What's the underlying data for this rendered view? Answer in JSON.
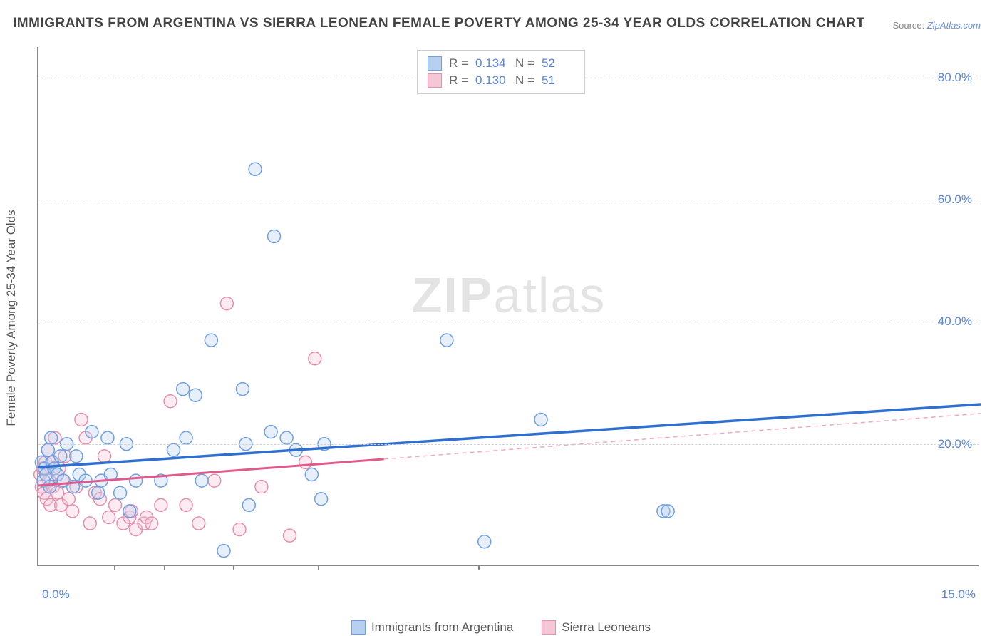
{
  "title": "IMMIGRANTS FROM ARGENTINA VS SIERRA LEONEAN FEMALE POVERTY AMONG 25-34 YEAR OLDS CORRELATION CHART",
  "source_prefix": "Source: ",
  "source_link": "ZipAtlas.com",
  "yaxis_title": "Female Poverty Among 25-34 Year Olds",
  "watermark": {
    "zip": "ZIP",
    "atlas": "atlas"
  },
  "chart": {
    "type": "scatter",
    "xlim": [
      0,
      15
    ],
    "ylim": [
      0,
      85
    ],
    "x_ticks": [
      1.2,
      2.0,
      3.1,
      4.45,
      7.0
    ],
    "x_labels": [
      {
        "value": 0,
        "text": "0.0%",
        "align": "left"
      },
      {
        "value": 15,
        "text": "15.0%",
        "align": "right"
      }
    ],
    "y_labels": [
      {
        "value": 20,
        "text": "20.0%"
      },
      {
        "value": 40,
        "text": "40.0%"
      },
      {
        "value": 60,
        "text": "60.0%"
      },
      {
        "value": 80,
        "text": "80.0%"
      }
    ],
    "y_gridlines": [
      20,
      40,
      60,
      80
    ],
    "background_color": "#ffffff",
    "grid_color": "#d0d0d0",
    "axis_color": "#888888",
    "marker_radius": 9,
    "marker_stroke_width": 1.5,
    "marker_fill_opacity": 0.35,
    "series": [
      {
        "name": "Immigrants from Argentina",
        "color_fill": "#b8d0f0",
        "color_stroke": "#6f9fe0",
        "stats": {
          "R": "0.134",
          "N": "52"
        },
        "regression": {
          "x1": 0,
          "y1": 16.2,
          "x2": 15,
          "y2": 26.5,
          "solid_to": 15,
          "stroke": "#2f6fd0",
          "width": 3.5
        },
        "points": [
          [
            0.05,
            17
          ],
          [
            0.08,
            14
          ],
          [
            0.1,
            16
          ],
          [
            0.12,
            15
          ],
          [
            0.15,
            19
          ],
          [
            0.18,
            13
          ],
          [
            0.2,
            21
          ],
          [
            0.22,
            17
          ],
          [
            0.25,
            16
          ],
          [
            0.3,
            15
          ],
          [
            0.35,
            18
          ],
          [
            0.4,
            14
          ],
          [
            0.45,
            20
          ],
          [
            0.55,
            13
          ],
          [
            0.6,
            18
          ],
          [
            0.65,
            15
          ],
          [
            0.75,
            14
          ],
          [
            0.85,
            22
          ],
          [
            0.95,
            12
          ],
          [
            1.0,
            14
          ],
          [
            1.1,
            21
          ],
          [
            1.15,
            15
          ],
          [
            1.3,
            12
          ],
          [
            1.4,
            20
          ],
          [
            1.45,
            9
          ],
          [
            1.55,
            14
          ],
          [
            1.95,
            14
          ],
          [
            2.15,
            19
          ],
          [
            2.3,
            29
          ],
          [
            2.35,
            21
          ],
          [
            2.5,
            28
          ],
          [
            2.6,
            14
          ],
          [
            2.75,
            37
          ],
          [
            2.95,
            2.5
          ],
          [
            3.25,
            29
          ],
          [
            3.3,
            20
          ],
          [
            3.35,
            10
          ],
          [
            3.45,
            65
          ],
          [
            3.7,
            22
          ],
          [
            3.75,
            54
          ],
          [
            3.95,
            21
          ],
          [
            4.1,
            19
          ],
          [
            4.35,
            15
          ],
          [
            4.5,
            11
          ],
          [
            4.55,
            20
          ],
          [
            6.5,
            37
          ],
          [
            7.1,
            4
          ],
          [
            8.0,
            24
          ],
          [
            9.95,
            9
          ],
          [
            10.02,
            9
          ]
        ]
      },
      {
        "name": "Sierra Leoneans",
        "color_fill": "#f5c6d6",
        "color_stroke": "#e58fae",
        "stats": {
          "R": "0.130",
          "N": "51"
        },
        "regression": {
          "x1": 0,
          "y1": 13.2,
          "x2": 15,
          "y2": 25.0,
          "solid_to": 5.5,
          "stroke": "#e05a8c",
          "width": 3,
          "dash_stroke": "#f0a8c0"
        },
        "points": [
          [
            0.03,
            15
          ],
          [
            0.05,
            13
          ],
          [
            0.07,
            16
          ],
          [
            0.09,
            12
          ],
          [
            0.11,
            17
          ],
          [
            0.13,
            11
          ],
          [
            0.15,
            19
          ],
          [
            0.17,
            14
          ],
          [
            0.19,
            10
          ],
          [
            0.21,
            17
          ],
          [
            0.23,
            13
          ],
          [
            0.26,
            21
          ],
          [
            0.3,
            12
          ],
          [
            0.33,
            16
          ],
          [
            0.36,
            10
          ],
          [
            0.39,
            14
          ],
          [
            0.42,
            18
          ],
          [
            0.48,
            11
          ],
          [
            0.54,
            9
          ],
          [
            0.6,
            13
          ],
          [
            0.68,
            24
          ],
          [
            0.75,
            21
          ],
          [
            0.82,
            7
          ],
          [
            0.9,
            12
          ],
          [
            0.98,
            11
          ],
          [
            1.05,
            18
          ],
          [
            1.12,
            8
          ],
          [
            1.22,
            10
          ],
          [
            1.35,
            7
          ],
          [
            1.45,
            8
          ],
          [
            1.48,
            9
          ],
          [
            1.55,
            6
          ],
          [
            1.68,
            7
          ],
          [
            1.72,
            8
          ],
          [
            1.8,
            7
          ],
          [
            1.95,
            10
          ],
          [
            2.1,
            27
          ],
          [
            2.35,
            10
          ],
          [
            2.55,
            7
          ],
          [
            2.8,
            14
          ],
          [
            3.0,
            43
          ],
          [
            3.2,
            6
          ],
          [
            3.55,
            13
          ],
          [
            4.0,
            5
          ],
          [
            4.25,
            17
          ],
          [
            4.4,
            34
          ]
        ]
      }
    ]
  },
  "stats_labels": {
    "R": "R =",
    "N": "N ="
  },
  "legend": [
    {
      "label": "Immigrants from Argentina",
      "fill": "#b8d0f0",
      "stroke": "#6f9fe0"
    },
    {
      "label": "Sierra Leoneans",
      "fill": "#f5c6d6",
      "stroke": "#e58fae"
    }
  ]
}
